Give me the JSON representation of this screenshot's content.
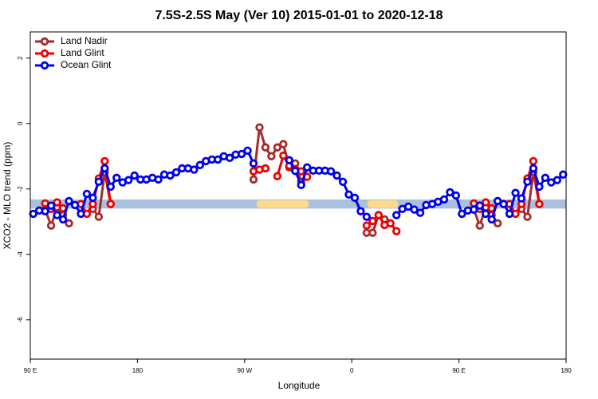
{
  "chart_data": {
    "type": "line",
    "title": "7.5S-2.5S May (Ver 10)   2015-01-01 to 2020-12-18",
    "xlabel": "Longitude",
    "ylabel": "XCO2 - MLO trend (ppm)",
    "x": [
      92.5,
      97.5,
      102.5,
      107.5,
      112.5,
      117.5,
      122.5,
      127.5,
      132.5,
      137.5,
      142.5,
      147.5,
      152.5,
      157.5,
      162.5,
      167.5,
      172.5,
      177.5,
      182.5,
      187.5,
      192.5,
      197.5,
      202.5,
      207.5,
      212.5,
      217.5,
      222.5,
      227.5,
      232.5,
      237.5,
      242.5,
      247.5,
      252.5,
      257.5,
      262.5,
      267.5,
      272.5,
      277.5,
      282.5,
      287.5,
      292.5,
      297.5,
      302.5,
      307.5,
      312.5,
      317.5,
      322.5,
      327.5,
      332.5,
      337.5,
      342.5,
      347.5,
      352.5,
      357.5,
      362.5,
      367.5,
      372.5,
      377.5,
      382.5,
      387.5,
      392.5,
      397.5,
      402.5,
      407.5,
      412.5,
      417.5,
      422.5,
      427.5,
      432.5,
      437.5,
      442.5,
      447.5,
      452.5,
      457.5,
      462.5,
      467.5,
      472.5,
      477.5,
      482.5,
      487.5,
      492.5,
      497.5,
      502.5,
      507.5,
      512.5,
      517.5,
      522.5,
      527.5,
      532.5,
      537.5
    ],
    "series": [
      {
        "name": "Land Nadir",
        "color": "#a52a2a",
        "values": [
          null,
          null,
          -2.63,
          -3.12,
          -2.56,
          -2.8,
          -3.05,
          null,
          null,
          null,
          -2.61,
          -2.85,
          -1.49,
          -2.46,
          null,
          null,
          null,
          null,
          null,
          null,
          null,
          null,
          null,
          null,
          null,
          null,
          null,
          null,
          null,
          null,
          null,
          null,
          null,
          null,
          null,
          null,
          null,
          -1.71,
          -0.12,
          -0.73,
          -1.0,
          -0.73,
          -0.63,
          -1.34,
          -1.22,
          -1.78,
          null,
          null,
          null,
          null,
          null,
          null,
          null,
          null,
          null,
          null,
          -3.34,
          -3.34,
          -2.8,
          -2.93,
          null,
          null,
          null,
          null,
          null,
          null,
          null,
          null,
          null,
          null,
          null,
          null,
          null,
          null,
          -2.63,
          -3.12,
          -2.56,
          -2.8,
          -3.05,
          null,
          null,
          null,
          -2.61,
          -2.85,
          -1.49,
          -2.46,
          null,
          null,
          null,
          null
        ]
      },
      {
        "name": "Land Glint",
        "color": "#ee0000",
        "values": [
          null,
          null,
          -2.44,
          -2.61,
          -2.41,
          -2.59,
          null,
          null,
          -2.46,
          -2.76,
          -2.46,
          -1.68,
          -1.15,
          -2.46,
          null,
          null,
          null,
          null,
          null,
          null,
          null,
          null,
          null,
          null,
          null,
          null,
          null,
          null,
          null,
          null,
          null,
          null,
          null,
          null,
          null,
          null,
          null,
          -1.46,
          -1.41,
          -1.37,
          null,
          -1.61,
          -0.98,
          -1.29,
          -1.39,
          -1.46,
          -1.63,
          null,
          null,
          null,
          null,
          null,
          null,
          null,
          null,
          null,
          -3.12,
          -2.98,
          -2.8,
          -3.1,
          -3.05,
          -3.29,
          null,
          null,
          null,
          null,
          null,
          null,
          null,
          null,
          null,
          null,
          null,
          null,
          -2.44,
          -2.61,
          -2.41,
          -2.59,
          null,
          null,
          -2.46,
          -2.76,
          -2.46,
          -1.68,
          -1.15,
          -2.46,
          null,
          null,
          null,
          null
        ]
      },
      {
        "name": "Ocean Glint",
        "color": "#0000ee",
        "values": [
          -2.76,
          -2.66,
          -2.68,
          -2.51,
          -2.8,
          -2.93,
          -2.37,
          -2.49,
          -2.76,
          -2.15,
          -2.27,
          -1.78,
          -1.37,
          -1.93,
          -1.66,
          -1.8,
          -1.73,
          -1.59,
          -1.71,
          -1.71,
          -1.66,
          -1.71,
          -1.56,
          -1.59,
          -1.49,
          -1.37,
          -1.37,
          -1.41,
          -1.27,
          -1.15,
          -1.1,
          -1.1,
          -1.0,
          -1.05,
          -0.95,
          -0.93,
          -0.83,
          -1.22,
          null,
          null,
          null,
          null,
          null,
          -1.12,
          -1.45,
          -1.88,
          -1.34,
          -1.44,
          -1.44,
          -1.44,
          -1.46,
          -1.59,
          -1.78,
          -2.17,
          -2.27,
          -2.68,
          -2.85,
          null,
          null,
          null,
          null,
          -2.8,
          -2.61,
          -2.54,
          -2.63,
          -2.73,
          -2.49,
          -2.46,
          -2.39,
          -2.32,
          -2.1,
          -2.2,
          -2.76,
          -2.66,
          -2.63,
          -2.51,
          -2.76,
          -2.93,
          -2.37,
          -2.46,
          -2.76,
          -2.12,
          -2.29,
          -1.78,
          -1.37,
          -1.93,
          -1.66,
          -1.8,
          -1.73,
          -1.56
        ]
      }
    ],
    "band": {
      "range": [
        -2.6,
        -2.32
      ],
      "color": "#a9c1de"
    },
    "highlights": [
      {
        "range": [
          280,
          324
        ],
        "color": "#ffd98a"
      },
      {
        "range": [
          373,
          399
        ],
        "color": "#ffd98a"
      }
    ],
    "xlim": [
      90,
      540
    ],
    "xticks": [
      {
        "value": 90,
        "label": "90 E"
      },
      180,
      {
        "value": 270,
        "label": "90 W"
      },
      {
        "value": 360,
        "label": "0"
      },
      {
        "value": 450,
        "label": "90 E"
      },
      {
        "value": 540,
        "label": "180"
      }
    ],
    "ylim": [
      -7.2,
      2.8
    ],
    "yticks": [
      -6,
      -4,
      -2,
      0,
      2
    ],
    "legend": "top-left"
  }
}
